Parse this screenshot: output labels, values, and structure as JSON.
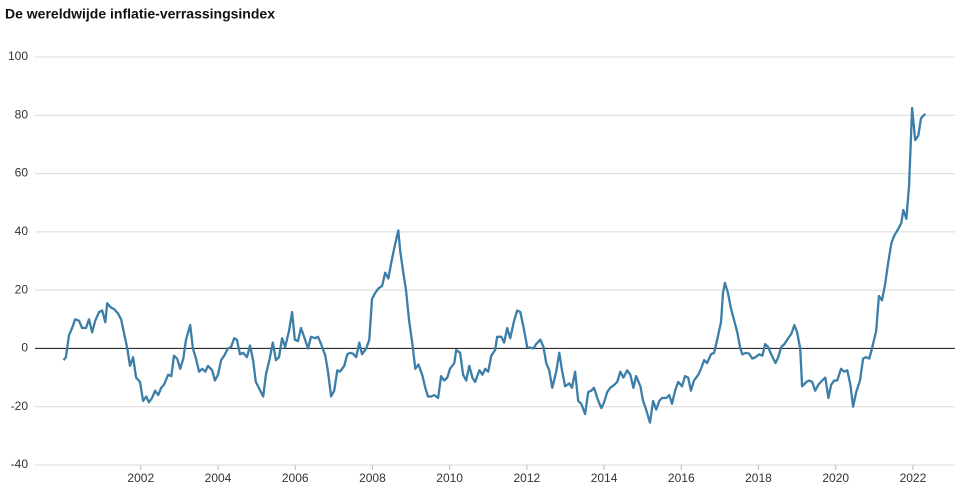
{
  "chart_data": {
    "type": "line",
    "title": "De wereldwijde inflatie-verrassingsindex",
    "x": [
      2000.0,
      2000.06,
      2000.14,
      2000.22,
      2000.3,
      2000.4,
      2000.48,
      2000.58,
      2000.66,
      2000.74,
      2000.82,
      2000.92,
      2001.0,
      2001.08,
      2001.13,
      2001.23,
      2001.31,
      2001.41,
      2001.49,
      2001.57,
      2001.65,
      2001.72,
      2001.8,
      2001.88,
      2001.98,
      2002.06,
      2002.14,
      2002.21,
      2002.29,
      2002.37,
      2002.45,
      2002.53,
      2002.6,
      2002.71,
      2002.79,
      2002.86,
      2002.94,
      2003.02,
      2003.1,
      2003.17,
      2003.28,
      2003.35,
      2003.43,
      2003.51,
      2003.59,
      2003.67,
      2003.74,
      2003.85,
      2003.92,
      2004.0,
      2004.08,
      2004.16,
      2004.26,
      2004.34,
      2004.42,
      2004.49,
      2004.57,
      2004.65,
      2004.75,
      2004.83,
      2004.91,
      2004.98,
      2005.17,
      2005.24,
      2005.34,
      2005.42,
      2005.5,
      2005.58,
      2005.66,
      2005.74,
      2005.84,
      2005.92,
      2005.99,
      2006.07,
      2006.15,
      2006.23,
      2006.33,
      2006.41,
      2006.52,
      2006.59,
      2006.67,
      2006.78,
      2006.85,
      2006.93,
      2007.01,
      2007.09,
      2007.16,
      2007.27,
      2007.35,
      2007.42,
      2007.5,
      2007.58,
      2007.66,
      2007.73,
      2007.84,
      2007.92,
      2007.99,
      2008.07,
      2008.15,
      2008.25,
      2008.33,
      2008.41,
      2008.49,
      2008.56,
      2008.67,
      2008.72,
      2008.8,
      2008.87,
      2008.95,
      2009.03,
      2009.11,
      2009.19,
      2009.29,
      2009.37,
      2009.44,
      2009.52,
      2009.6,
      2009.7,
      2009.78,
      2009.86,
      2009.94,
      2010.01,
      2010.12,
      2010.17,
      2010.27,
      2010.35,
      2010.43,
      2010.51,
      2010.59,
      2010.66,
      2010.77,
      2010.85,
      2010.92,
      2011.0,
      2011.08,
      2011.18,
      2011.23,
      2011.34,
      2011.41,
      2011.49,
      2011.57,
      2011.67,
      2011.75,
      2011.83,
      2011.91,
      2012.01,
      2012.09,
      2012.17,
      2012.24,
      2012.35,
      2012.43,
      2012.5,
      2012.58,
      2012.66,
      2012.76,
      2012.84,
      2012.91,
      2012.99,
      2013.1,
      2013.17,
      2013.25,
      2013.33,
      2013.41,
      2013.51,
      2013.59,
      2013.67,
      2013.74,
      2013.85,
      2013.93,
      2014.0,
      2014.08,
      2014.16,
      2014.26,
      2014.34,
      2014.42,
      2014.5,
      2014.6,
      2014.68,
      2014.76,
      2014.83,
      2014.94,
      2015.01,
      2015.09,
      2015.19,
      2015.27,
      2015.35,
      2015.43,
      2015.5,
      2015.61,
      2015.69,
      2015.76,
      2015.84,
      2015.92,
      2016.02,
      2016.1,
      2016.18,
      2016.25,
      2016.33,
      2016.44,
      2016.51,
      2016.59,
      2016.67,
      2016.77,
      2016.85,
      2016.93,
      2017.03,
      2017.08,
      2017.13,
      2017.21,
      2017.29,
      2017.37,
      2017.45,
      2017.52,
      2017.58,
      2017.68,
      2017.76,
      2017.84,
      2017.92,
      2018.02,
      2018.1,
      2018.17,
      2018.25,
      2018.33,
      2018.44,
      2018.51,
      2018.59,
      2018.67,
      2018.77,
      2018.85,
      2018.93,
      2019.0,
      2019.08,
      2019.13,
      2019.24,
      2019.31,
      2019.39,
      2019.47,
      2019.55,
      2019.65,
      2019.73,
      2019.81,
      2019.88,
      2019.96,
      2020.04,
      2020.14,
      2020.22,
      2020.3,
      2020.38,
      2020.45,
      2020.53,
      2020.63,
      2020.71,
      2020.79,
      2020.87,
      2020.94,
      2021.05,
      2021.12,
      2021.2,
      2021.28,
      2021.36,
      2021.44,
      2021.51,
      2021.62,
      2021.7,
      2021.75,
      2021.83,
      2021.9,
      2021.98,
      2022.06,
      2022.14,
      2022.21,
      2022.32
    ],
    "values": [
      -4,
      -3,
      4.5,
      7,
      10,
      9.5,
      7,
      7,
      10,
      5.5,
      9.5,
      12.5,
      13,
      9,
      15.5,
      14,
      13.5,
      12,
      10,
      5,
      0,
      -6,
      -3,
      -10,
      -11.5,
      -18,
      -16.5,
      -18.5,
      -17,
      -14.5,
      -16,
      -13.5,
      -12.5,
      -9,
      -9.5,
      -2.5,
      -3.5,
      -7,
      -3.5,
      3,
      8,
      0,
      -3.5,
      -8,
      -7,
      -8,
      -6,
      -7.5,
      -11,
      -9,
      -4,
      -2.5,
      0,
      0.5,
      3.5,
      3,
      -2,
      -1.5,
      -3,
      1,
      -4,
      -11.5,
      -16.5,
      -9,
      -3.5,
      2,
      -4,
      -3,
      3.5,
      0.5,
      6,
      12.5,
      3,
      2.5,
      7,
      4,
      0,
      4,
      3.5,
      4,
      1.5,
      -2.5,
      -8,
      -16.5,
      -14.5,
      -7.5,
      -8,
      -6,
      -2,
      -1.5,
      -1.8,
      -3,
      2,
      -2,
      0,
      3,
      17,
      19,
      20.5,
      21.5,
      26,
      24,
      29.5,
      34,
      40.5,
      33.5,
      26,
      20,
      9.5,
      2,
      -7,
      -5.5,
      -9,
      -13.5,
      -16.5,
      -16.5,
      -16,
      -17,
      -9.5,
      -11,
      -10,
      -7,
      -5,
      -0.5,
      -1.5,
      -9,
      -11,
      -6,
      -10,
      -11.5,
      -7.5,
      -9,
      -7,
      -8,
      -2.5,
      -0.5,
      4,
      4,
      2,
      7,
      3.5,
      9.5,
      13,
      12.5,
      7.5,
      0.5,
      0.3,
      0,
      1.5,
      3,
      0.5,
      -5,
      -7.5,
      -13.5,
      -8,
      -1.5,
      -7.5,
      -13,
      -12,
      -13.5,
      -8,
      -18,
      -19,
      -22.5,
      -15,
      -14.5,
      -13.5,
      -18,
      -20.5,
      -18.5,
      -15,
      -13.5,
      -12.5,
      -11.5,
      -8,
      -10,
      -7.5,
      -9,
      -13.5,
      -9.5,
      -13,
      -18,
      -21,
      -25.5,
      -18,
      -21,
      -18,
      -17,
      -17,
      -16,
      -19,
      -14.5,
      -11.5,
      -13,
      -9.5,
      -10,
      -14.5,
      -11,
      -9,
      -7,
      -4,
      -5,
      -2,
      -1.5,
      3,
      9,
      19,
      22.5,
      19,
      13.5,
      9.5,
      5.5,
      0.5,
      -2,
      -1.5,
      -1.8,
      -3.5,
      -3,
      -2,
      -2.5,
      1.5,
      0.5,
      -2,
      -5,
      -3,
      0.5,
      1.5,
      3.5,
      5,
      8,
      5.5,
      0,
      -13,
      -11.5,
      -11,
      -11.5,
      -14.5,
      -12.5,
      -11,
      -10,
      -17,
      -12.5,
      -11,
      -11,
      -7,
      -8,
      -7.5,
      -12.5,
      -20,
      -15,
      -11,
      -3.5,
      -3,
      -3.5,
      0,
      6,
      18,
      16.5,
      22,
      29.5,
      36,
      38.5,
      41,
      43,
      47.5,
      44.5,
      56,
      82.5,
      71.5,
      73,
      79,
      80.5
    ],
    "color": "#3b7ea8",
    "xlim": [
      1999.26,
      2023.09
    ],
    "xticks": [
      2002,
      2004,
      2006,
      2008,
      2010,
      2012,
      2014,
      2016,
      2018,
      2020,
      2022
    ],
    "ylim": [
      -40,
      100
    ],
    "yticks": [
      -40,
      -20,
      0,
      20,
      40,
      60,
      80,
      100
    ],
    "grid": true
  }
}
